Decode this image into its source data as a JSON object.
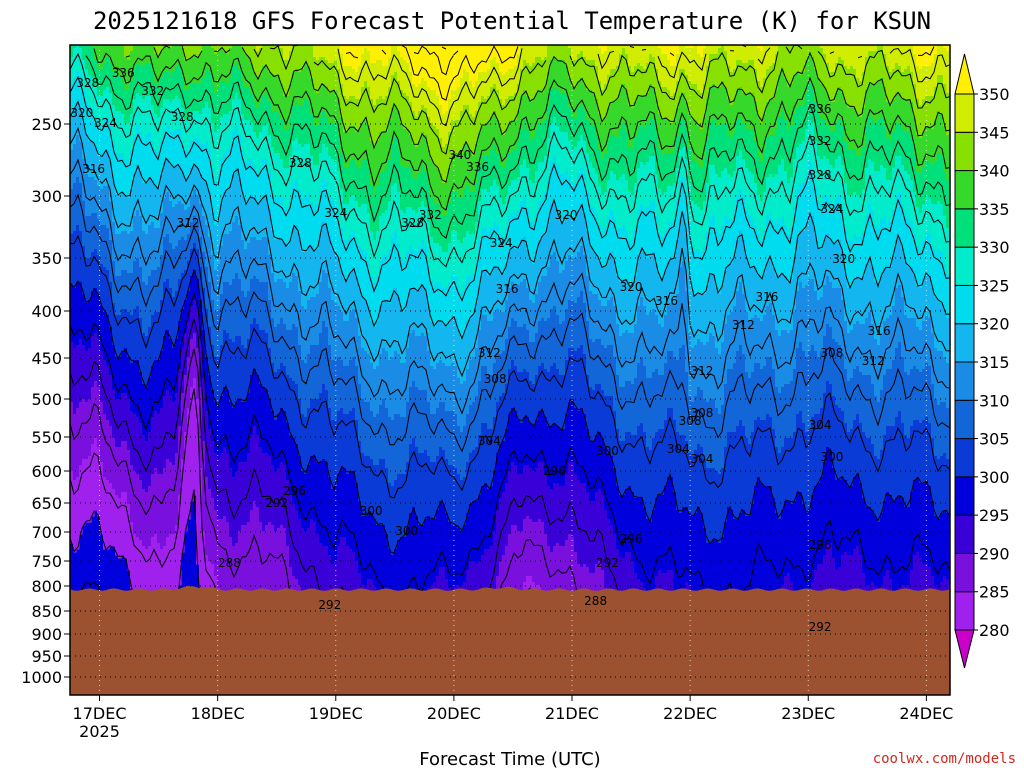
{
  "chart_data": {
    "type": "heatmap",
    "title": "2025121618 GFS Forecast Potential Temperature (K) for KSUN",
    "xlabel": "Forecast Time (UTC)",
    "ylabel": "",
    "credit": "coolwx.com/models",
    "x_ticks": [
      "17DEC",
      "18DEC",
      "19DEC",
      "20DEC",
      "21DEC",
      "22DEC",
      "23DEC",
      "24DEC"
    ],
    "x_tick_sub": "2025",
    "y_ticks": [
      250,
      300,
      350,
      400,
      450,
      500,
      550,
      600,
      650,
      700,
      750,
      800,
      850,
      900,
      950,
      1000
    ],
    "y_scale": "log-pressure (hPa), inverted",
    "ylim": [
      1050,
      200
    ],
    "xlim_days": [
      16.75,
      24.2
    ],
    "colorbar": {
      "ticks": [
        280,
        285,
        290,
        295,
        300,
        305,
        310,
        315,
        320,
        325,
        330,
        335,
        340,
        345,
        350
      ],
      "levels": [
        275,
        280,
        285,
        290,
        295,
        300,
        305,
        310,
        315,
        320,
        325,
        330,
        335,
        340,
        345,
        350,
        355
      ],
      "colors": [
        "#cc00cc",
        "#a020ee",
        "#7a10dd",
        "#3a00d8",
        "#0000dd",
        "#0b3bd6",
        "#1366d8",
        "#1a8ce6",
        "#13b6ee",
        "#00dcef",
        "#00eccb",
        "#00e07a",
        "#36d82a",
        "#88e000",
        "#d0ec00",
        "#fff000"
      ],
      "extend": "both"
    },
    "contour_labels": [
      "336",
      "332",
      "328",
      "324",
      "320",
      "328",
      "328",
      "324",
      "340",
      "336",
      "332",
      "328",
      "324",
      "320",
      "316",
      "312",
      "308",
      "304",
      "300",
      "296",
      "292",
      "288",
      "316",
      "312",
      "320",
      "316",
      "312",
      "308",
      "304",
      "300",
      "296",
      "292",
      "288",
      "336",
      "332",
      "328",
      "324",
      "320",
      "316",
      "312",
      "308",
      "304",
      "300",
      "296",
      "292",
      "316",
      "312",
      "308",
      "304",
      "300",
      "296",
      "292"
    ],
    "terrain_color": "#9c5230",
    "grid": "dotted"
  }
}
